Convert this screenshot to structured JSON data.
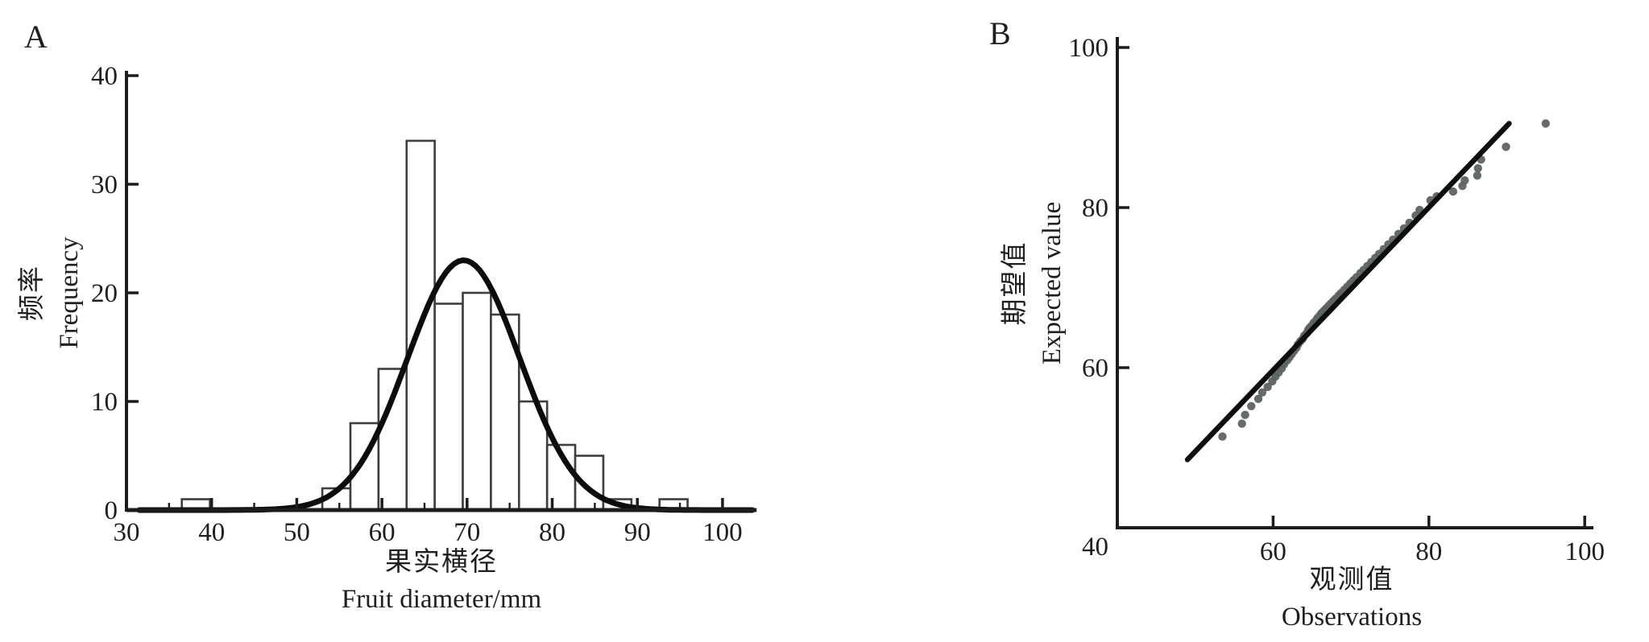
{
  "figure": {
    "background": "#ffffff",
    "axis_color": "#1c1c1c",
    "bar_stroke_color": "#3e3e3e",
    "curve_color": "#0c0c0c",
    "line_color": "#0e0e0e",
    "point_color": "#5d6460"
  },
  "panel_a": {
    "label": "A",
    "ylabel_zh": "频率",
    "ylabel_en": "Frequency",
    "xlabel_zh": "果实横径",
    "xlabel_en": "Fruit diameter/mm"
  },
  "panel_b": {
    "label": "B",
    "ylabel_zh": "期望值",
    "ylabel_en": "Expected value",
    "xlabel_zh": "观测值",
    "xlabel_en": "Observations"
  },
  "chart_data": [
    {
      "panel": "A",
      "type": "bar",
      "subtype": "histogram-with-normal-curve",
      "title": "",
      "xlabel": "果实横径 Fruit diameter/mm",
      "ylabel": "频率 Frequency",
      "xlim": [
        30,
        104
      ],
      "ylim": [
        0,
        40
      ],
      "x_ticks": [
        30,
        40,
        50,
        60,
        70,
        80,
        90,
        100
      ],
      "x_minor_ticks": [
        35,
        45,
        55,
        65,
        75,
        85,
        95
      ],
      "y_ticks": [
        0,
        10,
        20,
        30,
        40
      ],
      "grid": false,
      "bins": [
        {
          "from": 36.5,
          "to": 39.8,
          "count": 1
        },
        {
          "from": 53.0,
          "to": 56.3,
          "count": 2
        },
        {
          "from": 56.3,
          "to": 59.6,
          "count": 8
        },
        {
          "from": 59.6,
          "to": 62.9,
          "count": 13
        },
        {
          "from": 62.9,
          "to": 66.2,
          "count": 34
        },
        {
          "from": 66.2,
          "to": 69.5,
          "count": 19
        },
        {
          "from": 69.5,
          "to": 72.8,
          "count": 20
        },
        {
          "from": 72.8,
          "to": 76.1,
          "count": 18
        },
        {
          "from": 76.1,
          "to": 79.4,
          "count": 10
        },
        {
          "from": 79.4,
          "to": 82.7,
          "count": 6
        },
        {
          "from": 82.7,
          "to": 86.0,
          "count": 5
        },
        {
          "from": 86.0,
          "to": 89.3,
          "count": 1
        },
        {
          "from": 92.6,
          "to": 95.9,
          "count": 1
        }
      ],
      "normal_curve": {
        "mean": 69.6,
        "sd": 6.6,
        "peak": 23,
        "x_from": 31.5,
        "x_to": 103.5
      }
    },
    {
      "panel": "B",
      "type": "scatter",
      "subtype": "qq-plot",
      "title": "",
      "xlabel": "观测值 Observations",
      "ylabel": "期望值 Expected value",
      "xlim": [
        40,
        104
      ],
      "ylim": [
        40,
        102
      ],
      "x_ticks": [
        60,
        80,
        100
      ],
      "y_ticks": [
        40,
        60,
        80,
        100
      ],
      "grid": false,
      "reference_line": {
        "x1": 49.0,
        "y1": 48.5,
        "x2": 90.3,
        "y2": 90.5
      },
      "points": [
        [
          53.5,
          51.4
        ],
        [
          56.0,
          53.0
        ],
        [
          56.4,
          54.1
        ],
        [
          57.2,
          55.2
        ],
        [
          58.1,
          56.1
        ],
        [
          58.6,
          56.9
        ],
        [
          59.3,
          57.6
        ],
        [
          59.9,
          58.3
        ],
        [
          60.3,
          58.9
        ],
        [
          60.7,
          59.4
        ],
        [
          61.1,
          59.9
        ],
        [
          61.4,
          60.4
        ],
        [
          61.8,
          60.9
        ],
        [
          62.1,
          61.3
        ],
        [
          62.4,
          61.7
        ],
        [
          62.7,
          62.1
        ],
        [
          63.0,
          62.5
        ],
        [
          63.2,
          62.9
        ],
        [
          63.5,
          63.3
        ],
        [
          63.8,
          63.6
        ],
        [
          64.0,
          64.0
        ],
        [
          64.3,
          64.3
        ],
        [
          64.5,
          64.7
        ],
        [
          64.7,
          65.0
        ],
        [
          65.0,
          65.3
        ],
        [
          65.2,
          65.6
        ],
        [
          65.5,
          65.9
        ],
        [
          65.7,
          66.2
        ],
        [
          66.0,
          66.5
        ],
        [
          66.2,
          66.8
        ],
        [
          66.5,
          67.1
        ],
        [
          66.8,
          67.4
        ],
        [
          67.1,
          67.7
        ],
        [
          67.4,
          68.0
        ],
        [
          67.7,
          68.3
        ],
        [
          68.0,
          68.6
        ],
        [
          68.4,
          69.0
        ],
        [
          68.7,
          69.3
        ],
        [
          69.1,
          69.7
        ],
        [
          69.5,
          70.1
        ],
        [
          69.9,
          70.5
        ],
        [
          70.3,
          70.9
        ],
        [
          70.7,
          71.3
        ],
        [
          71.2,
          71.8
        ],
        [
          71.6,
          72.2
        ],
        [
          72.1,
          72.7
        ],
        [
          72.6,
          73.2
        ],
        [
          73.1,
          73.7
        ],
        [
          73.6,
          74.2
        ],
        [
          74.2,
          74.8
        ],
        [
          74.8,
          75.4
        ],
        [
          75.4,
          76.0
        ],
        [
          76.1,
          76.7
        ],
        [
          76.8,
          77.4
        ],
        [
          77.5,
          78.1
        ],
        [
          78.3,
          79.0
        ],
        [
          78.8,
          79.7
        ],
        [
          80.2,
          80.9
        ],
        [
          81.0,
          81.4
        ],
        [
          83.1,
          82.0
        ],
        [
          84.3,
          82.7
        ],
        [
          84.6,
          83.4
        ],
        [
          86.2,
          84.0
        ],
        [
          86.3,
          84.9
        ],
        [
          86.7,
          86.0
        ],
        [
          89.9,
          87.6
        ],
        [
          95.0,
          90.5
        ]
      ]
    }
  ]
}
